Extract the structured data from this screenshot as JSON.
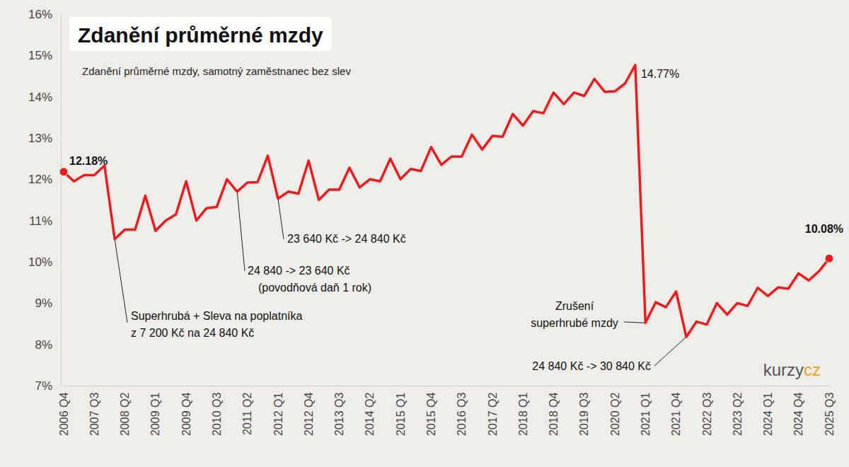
{
  "chart_data": {
    "type": "line",
    "title": "Zdanění průměrné mzdy",
    "subtitle": "Zdanění průměrné mzdy, samotný zaměstnanec bez slev",
    "categories": [
      "2006 Q4",
      null,
      null,
      "2007 Q3",
      null,
      null,
      "2008 Q2",
      null,
      null,
      "2009 Q1",
      null,
      null,
      "2009 Q4",
      null,
      null,
      "2010 Q3",
      null,
      null,
      "2011 Q2",
      null,
      null,
      "2012 Q1",
      null,
      null,
      "2012 Q4",
      null,
      null,
      "2013 Q3",
      null,
      null,
      "2014 Q2",
      null,
      null,
      "2015 Q1",
      null,
      null,
      "2015 Q4",
      null,
      null,
      "2016 Q3",
      null,
      null,
      "2017 Q2",
      null,
      null,
      "2018 Q1",
      null,
      null,
      "2018 Q4",
      null,
      null,
      "2019 Q3",
      null,
      null,
      "2020 Q2",
      null,
      null,
      "2021 Q1",
      null,
      null,
      "2021 Q4",
      null,
      null,
      "2022 Q3",
      null,
      null,
      "2023 Q2",
      null,
      null,
      "2024 Q1",
      null,
      null,
      "2024 Q4",
      null,
      null,
      "2025 Q3"
    ],
    "values": [
      12.18,
      11.95,
      12.1,
      12.1,
      12.33,
      10.55,
      10.78,
      10.78,
      11.6,
      10.75,
      11.0,
      11.15,
      11.95,
      11.0,
      11.3,
      11.33,
      12.0,
      11.7,
      11.92,
      11.93,
      12.57,
      11.53,
      11.7,
      11.65,
      12.45,
      11.5,
      11.75,
      11.75,
      12.28,
      11.8,
      12.0,
      11.95,
      12.5,
      12.0,
      12.25,
      12.2,
      12.78,
      12.35,
      12.55,
      12.55,
      13.08,
      12.72,
      13.05,
      13.03,
      13.58,
      13.3,
      13.65,
      13.6,
      14.1,
      13.82,
      14.1,
      14.02,
      14.43,
      14.12,
      14.13,
      14.32,
      14.77,
      8.52,
      9.02,
      8.9,
      9.28,
      8.18,
      8.55,
      8.48,
      9.0,
      8.72,
      9.0,
      8.93,
      9.37,
      9.17,
      9.38,
      9.35,
      9.72,
      9.55,
      9.77,
      10.08
    ],
    "value_labels": [
      "12.18%",
      null,
      null,
      null,
      null,
      null,
      null,
      null,
      null,
      null,
      null,
      null,
      null,
      null,
      null,
      null,
      null,
      null,
      null,
      null,
      null,
      null,
      null,
      null,
      null,
      null,
      null,
      null,
      null,
      null,
      null,
      null,
      null,
      null,
      null,
      null,
      null,
      null,
      null,
      null,
      null,
      null,
      null,
      null,
      null,
      null,
      null,
      null,
      null,
      null,
      null,
      null,
      null,
      null,
      null,
      null,
      "14.77%",
      null,
      null,
      null,
      null,
      null,
      null,
      null,
      null,
      null,
      null,
      null,
      null,
      null,
      null,
      null,
      null,
      null,
      null,
      "10.08%"
    ],
    "color": "#ec1c1c",
    "ylim": [
      7,
      16
    ],
    "yticks": [
      {
        "value": 7,
        "label": "7%"
      },
      {
        "value": 8,
        "label": "8%"
      },
      {
        "value": 9,
        "label": "9%"
      },
      {
        "value": 10,
        "label": "10%"
      },
      {
        "value": 11,
        "label": "11%"
      },
      {
        "value": 12,
        "label": "12%"
      },
      {
        "value": 13,
        "label": "13%"
      },
      {
        "value": 14,
        "label": "14%"
      },
      {
        "value": 15,
        "label": "15%"
      },
      {
        "value": 16,
        "label": "16%"
      }
    ],
    "grid": false,
    "annotations": [
      {
        "index": 5,
        "text": [
          "Superhrubá + Sleva na poplatníka",
          "z 7 200 Kč na 24 840 Kč"
        ]
      },
      {
        "index": 17,
        "text": [
          "24 840 -> 23 640 Kč",
          "(povodňová daň 1 rok)"
        ]
      },
      {
        "index": 21,
        "text": [
          "23 640 Kč -> 24 840 Kč"
        ]
      },
      {
        "index": 57,
        "text": [
          "Zrušení",
          "superhrubé mzdy"
        ]
      },
      {
        "index": 61,
        "text": [
          "24 840 Kč -> 30 840 Kč"
        ]
      }
    ],
    "logo": [
      "kurzy",
      "cz"
    ]
  }
}
